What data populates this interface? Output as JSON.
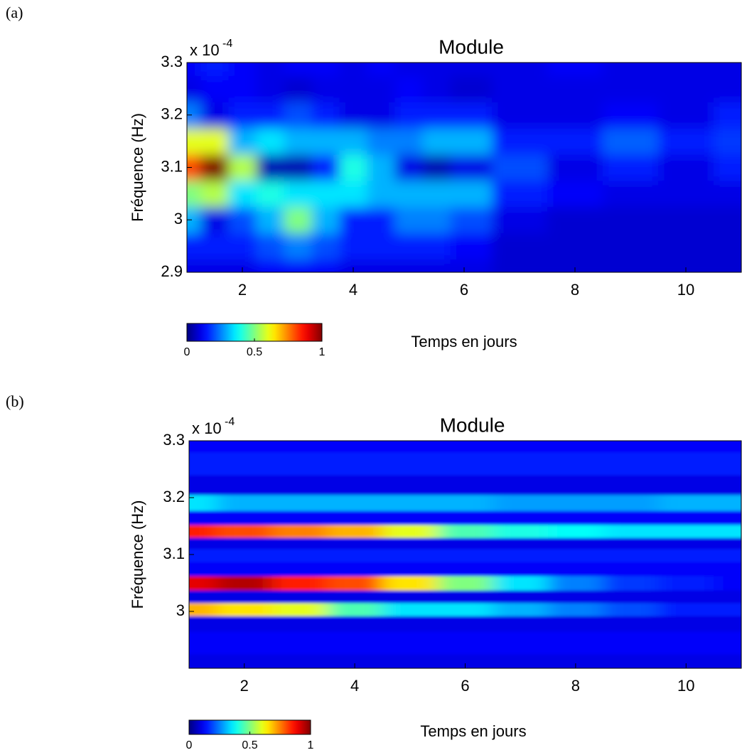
{
  "chart_data": [
    {
      "type": "heatmap",
      "panel_label": "(a)",
      "title": "Module",
      "exponent_base": "x 10",
      "exponent_power": "-4",
      "xlabel": "Temps en jours",
      "ylabel": "Fréquence (Hz)",
      "xlim": [
        1,
        11
      ],
      "ylim": [
        2.9,
        3.3
      ],
      "xticks": [
        2,
        4,
        6,
        8,
        10
      ],
      "yticks": [
        2.9,
        3,
        3.1,
        3.2,
        3.3
      ],
      "colormap": "jet",
      "clim": [
        0,
        1
      ],
      "colorbar_ticks": [
        0,
        0.5,
        1
      ],
      "x": [
        1,
        1.5,
        2,
        2.5,
        3,
        3.5,
        4,
        4.5,
        5,
        5.5,
        6,
        7,
        8,
        9,
        10,
        11
      ],
      "y": [
        2.9,
        2.95,
        3.0,
        3.05,
        3.1,
        3.15,
        3.2,
        3.25,
        3.3
      ],
      "z": [
        [
          0.1,
          0.1,
          0.1,
          0.12,
          0.12,
          0.12,
          0.1,
          0.1,
          0.1,
          0.1,
          0.1,
          0.08,
          0.08,
          0.08,
          0.08,
          0.08
        ],
        [
          0.15,
          0.15,
          0.15,
          0.2,
          0.25,
          0.2,
          0.15,
          0.15,
          0.15,
          0.15,
          0.12,
          0.08,
          0.08,
          0.08,
          0.08,
          0.08
        ],
        [
          0.3,
          0.1,
          0.2,
          0.3,
          0.5,
          0.3,
          0.15,
          0.15,
          0.25,
          0.25,
          0.2,
          0.1,
          0.08,
          0.08,
          0.08,
          0.08
        ],
        [
          0.5,
          0.55,
          0.35,
          0.4,
          0.35,
          0.35,
          0.35,
          0.3,
          0.3,
          0.3,
          0.3,
          0.15,
          0.12,
          0.1,
          0.1,
          0.1
        ],
        [
          0.8,
          1.0,
          0.55,
          0.05,
          0.05,
          0.15,
          0.4,
          0.3,
          0.1,
          0.05,
          0.1,
          0.2,
          0.1,
          0.15,
          0.1,
          0.15
        ],
        [
          0.6,
          0.6,
          0.3,
          0.35,
          0.3,
          0.3,
          0.3,
          0.25,
          0.25,
          0.3,
          0.3,
          0.15,
          0.15,
          0.22,
          0.15,
          0.18
        ],
        [
          0.25,
          0.1,
          0.15,
          0.15,
          0.2,
          0.15,
          0.1,
          0.1,
          0.15,
          0.15,
          0.15,
          0.1,
          0.1,
          0.12,
          0.1,
          0.15
        ],
        [
          0.1,
          0.12,
          0.12,
          0.1,
          0.08,
          0.1,
          0.1,
          0.1,
          0.12,
          0.1,
          0.08,
          0.1,
          0.1,
          0.1,
          0.1,
          0.1
        ],
        [
          0.12,
          0.15,
          0.12,
          0.1,
          0.12,
          0.12,
          0.1,
          0.12,
          0.1,
          0.1,
          0.1,
          0.1,
          0.12,
          0.1,
          0.1,
          0.1
        ]
      ]
    },
    {
      "type": "heatmap",
      "panel_label": "(b)",
      "title": "Module",
      "exponent_base": "x 10",
      "exponent_power": "-4",
      "xlabel": "Temps en jours",
      "ylabel": "Fréquence (Hz)",
      "xlim": [
        1,
        11
      ],
      "ylim": [
        2.9,
        3.3
      ],
      "xticks": [
        2,
        4,
        6,
        8,
        10
      ],
      "yticks": [
        3,
        3.1,
        3.2,
        3.3
      ],
      "colormap": "jet",
      "clim": [
        0,
        1
      ],
      "colorbar_ticks": [
        0,
        0.5,
        1
      ],
      "x": [
        1,
        2,
        3,
        4,
        5,
        6,
        7,
        8,
        9,
        10,
        11
      ],
      "y": [
        2.9,
        2.95,
        2.98,
        3.005,
        3.025,
        3.05,
        3.075,
        3.1,
        3.12,
        3.14,
        3.165,
        3.19,
        3.22,
        3.26,
        3.3
      ],
      "z": [
        [
          0.1,
          0.1,
          0.1,
          0.1,
          0.1,
          0.1,
          0.1,
          0.1,
          0.1,
          0.1,
          0.1
        ],
        [
          0.12,
          0.12,
          0.12,
          0.12,
          0.12,
          0.12,
          0.12,
          0.12,
          0.12,
          0.12,
          0.12
        ],
        [
          0.1,
          0.1,
          0.1,
          0.1,
          0.1,
          0.1,
          0.1,
          0.1,
          0.1,
          0.1,
          0.1
        ],
        [
          0.7,
          0.65,
          0.6,
          0.45,
          0.35,
          0.35,
          0.3,
          0.25,
          0.2,
          0.15,
          0.15
        ],
        [
          0.1,
          0.1,
          0.1,
          0.1,
          0.1,
          0.1,
          0.1,
          0.1,
          0.1,
          0.1,
          0.1
        ],
        [
          0.9,
          0.95,
          0.85,
          0.8,
          0.65,
          0.5,
          0.35,
          0.25,
          0.18,
          0.15,
          0.12
        ],
        [
          0.12,
          0.12,
          0.12,
          0.12,
          0.12,
          0.12,
          0.12,
          0.12,
          0.12,
          0.12,
          0.12
        ],
        [
          0.15,
          0.15,
          0.15,
          0.15,
          0.15,
          0.15,
          0.15,
          0.15,
          0.15,
          0.15,
          0.15
        ],
        [
          0.1,
          0.1,
          0.1,
          0.1,
          0.1,
          0.1,
          0.1,
          0.1,
          0.1,
          0.1,
          0.1
        ],
        [
          0.85,
          0.8,
          0.75,
          0.7,
          0.6,
          0.45,
          0.4,
          0.38,
          0.35,
          0.35,
          0.35
        ],
        [
          0.12,
          0.12,
          0.12,
          0.12,
          0.12,
          0.12,
          0.12,
          0.12,
          0.12,
          0.12,
          0.12
        ],
        [
          0.35,
          0.3,
          0.3,
          0.3,
          0.3,
          0.3,
          0.28,
          0.28,
          0.28,
          0.3,
          0.3
        ],
        [
          0.1,
          0.1,
          0.1,
          0.1,
          0.1,
          0.1,
          0.1,
          0.1,
          0.1,
          0.1,
          0.1
        ],
        [
          0.15,
          0.15,
          0.15,
          0.15,
          0.15,
          0.15,
          0.15,
          0.15,
          0.15,
          0.15,
          0.15
        ],
        [
          0.12,
          0.12,
          0.12,
          0.12,
          0.12,
          0.12,
          0.12,
          0.12,
          0.12,
          0.12,
          0.12
        ]
      ]
    }
  ]
}
